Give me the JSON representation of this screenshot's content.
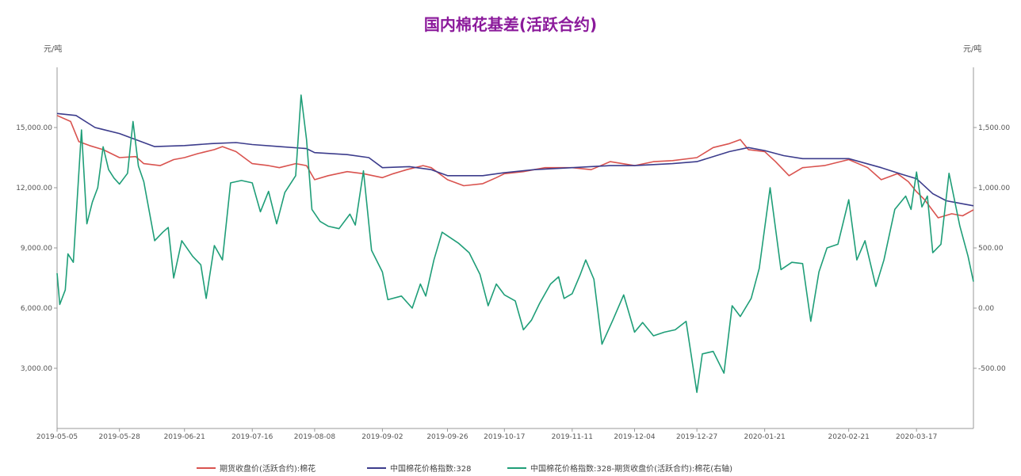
{
  "chart_data": {
    "type": "line",
    "title": "国内棉花基差(活跃合约)",
    "left_unit": "元/吨",
    "right_unit": "元/吨",
    "y_left": {
      "min": 0,
      "max": 18000,
      "ticks": [
        3000,
        6000,
        9000,
        12000,
        15000
      ],
      "tick_labels": [
        "3,000.00",
        "6,000.00",
        "9,000.00",
        "12,000.00",
        "15,000.00"
      ]
    },
    "y_right": {
      "min": -1000,
      "max": 2000,
      "ticks": [
        -500,
        0,
        500,
        1000,
        1500
      ],
      "tick_labels": [
        "-500.00",
        "0.00",
        "500.00",
        "1,000.00",
        "1,500.00"
      ]
    },
    "x_tick_labels": [
      "2019-05-05",
      "2019-05-28",
      "2019-06-21",
      "2019-07-16",
      "2019-08-08",
      "2019-09-02",
      "2019-09-26",
      "2019-10-17",
      "2019-11-11",
      "2019-12-04",
      "2019-12-27",
      "2020-01-21",
      "2020-02-21",
      "2020-03-17"
    ],
    "x_range": [
      "2019-05-05",
      "2020-04-07"
    ],
    "colors": {
      "futures": "#d9534f",
      "index": "#3c3c8c",
      "basis": "#1f9e78",
      "title": "#8b1a9b"
    },
    "legend": [
      "期货收盘价(活跃合约):棉花",
      "中国棉花价格指数:328",
      "中国棉花价格指数:328-期货收盘价(活跃合约):棉花(右轴)"
    ],
    "legend_position": "bottom",
    "series": [
      {
        "name": "期货收盘价(活跃合约):棉花",
        "axis": "left",
        "points": [
          [
            "2019-05-05",
            15600
          ],
          [
            "2019-05-10",
            15300
          ],
          [
            "2019-05-13",
            14300
          ],
          [
            "2019-05-17",
            14100
          ],
          [
            "2019-05-22",
            13900
          ],
          [
            "2019-05-28",
            13500
          ],
          [
            "2019-06-03",
            13550
          ],
          [
            "2019-06-06",
            13200
          ],
          [
            "2019-06-12",
            13100
          ],
          [
            "2019-06-17",
            13400
          ],
          [
            "2019-06-21",
            13500
          ],
          [
            "2019-06-26",
            13700
          ],
          [
            "2019-07-02",
            13900
          ],
          [
            "2019-07-05",
            14050
          ],
          [
            "2019-07-10",
            13800
          ],
          [
            "2019-07-16",
            13200
          ],
          [
            "2019-07-22",
            13100
          ],
          [
            "2019-07-26",
            13000
          ],
          [
            "2019-08-01",
            13200
          ],
          [
            "2019-08-05",
            13100
          ],
          [
            "2019-08-08",
            12400
          ],
          [
            "2019-08-13",
            12600
          ],
          [
            "2019-08-20",
            12800
          ],
          [
            "2019-08-26",
            12700
          ],
          [
            "2019-09-02",
            12500
          ],
          [
            "2019-09-06",
            12700
          ],
          [
            "2019-09-11",
            12900
          ],
          [
            "2019-09-17",
            13100
          ],
          [
            "2019-09-20",
            13000
          ],
          [
            "2019-09-26",
            12400
          ],
          [
            "2019-10-02",
            12100
          ],
          [
            "2019-10-09",
            12200
          ],
          [
            "2019-10-14",
            12500
          ],
          [
            "2019-10-17",
            12700
          ],
          [
            "2019-10-24",
            12800
          ],
          [
            "2019-11-01",
            13000
          ],
          [
            "2019-11-11",
            13000
          ],
          [
            "2019-11-18",
            12900
          ],
          [
            "2019-11-25",
            13300
          ],
          [
            "2019-12-04",
            13100
          ],
          [
            "2019-12-11",
            13300
          ],
          [
            "2019-12-18",
            13350
          ],
          [
            "2019-12-27",
            13500
          ],
          [
            "2020-01-02",
            14000
          ],
          [
            "2020-01-08",
            14200
          ],
          [
            "2020-01-12",
            14400
          ],
          [
            "2020-01-15",
            13900
          ],
          [
            "2020-01-21",
            13800
          ],
          [
            "2020-01-25",
            13300
          ],
          [
            "2020-01-30",
            12600
          ],
          [
            "2020-02-04",
            13000
          ],
          [
            "2020-02-12",
            13100
          ],
          [
            "2020-02-21",
            13400
          ],
          [
            "2020-02-28",
            13000
          ],
          [
            "2020-03-04",
            12400
          ],
          [
            "2020-03-10",
            12700
          ],
          [
            "2020-03-14",
            12300
          ],
          [
            "2020-03-17",
            11800
          ],
          [
            "2020-03-20",
            11400
          ],
          [
            "2020-03-25",
            10500
          ],
          [
            "2020-03-30",
            10700
          ],
          [
            "2020-04-03",
            10600
          ],
          [
            "2020-04-07",
            10900
          ]
        ]
      },
      {
        "name": "中国棉花价格指数:328",
        "axis": "left",
        "points": [
          [
            "2019-05-05",
            15700
          ],
          [
            "2019-05-12",
            15600
          ],
          [
            "2019-05-19",
            15000
          ],
          [
            "2019-05-28",
            14700
          ],
          [
            "2019-06-03",
            14400
          ],
          [
            "2019-06-10",
            14050
          ],
          [
            "2019-06-21",
            14100
          ],
          [
            "2019-07-01",
            14200
          ],
          [
            "2019-07-10",
            14250
          ],
          [
            "2019-07-16",
            14150
          ],
          [
            "2019-07-26",
            14050
          ],
          [
            "2019-08-05",
            13950
          ],
          [
            "2019-08-08",
            13750
          ],
          [
            "2019-08-20",
            13650
          ],
          [
            "2019-08-28",
            13500
          ],
          [
            "2019-09-02",
            13000
          ],
          [
            "2019-09-12",
            13050
          ],
          [
            "2019-09-20",
            12900
          ],
          [
            "2019-09-26",
            12600
          ],
          [
            "2019-10-09",
            12600
          ],
          [
            "2019-10-17",
            12750
          ],
          [
            "2019-10-28",
            12900
          ],
          [
            "2019-11-11",
            13000
          ],
          [
            "2019-11-25",
            13100
          ],
          [
            "2019-12-04",
            13100
          ],
          [
            "2019-12-18",
            13200
          ],
          [
            "2019-12-27",
            13300
          ],
          [
            "2020-01-08",
            13800
          ],
          [
            "2020-01-15",
            14000
          ],
          [
            "2020-01-21",
            13850
          ],
          [
            "2020-01-28",
            13600
          ],
          [
            "2020-02-04",
            13450
          ],
          [
            "2020-02-21",
            13450
          ],
          [
            "2020-03-04",
            13000
          ],
          [
            "2020-03-12",
            12650
          ],
          [
            "2020-03-17",
            12450
          ],
          [
            "2020-03-23",
            11700
          ],
          [
            "2020-03-28",
            11350
          ],
          [
            "2020-04-03",
            11200
          ],
          [
            "2020-04-07",
            11100
          ]
        ]
      },
      {
        "name": "中国棉花价格指数:328-期货收盘价(活跃合约):棉花(右轴)",
        "axis": "right",
        "points": [
          [
            "2019-05-05",
            290
          ],
          [
            "2019-05-06",
            30
          ],
          [
            "2019-05-08",
            150
          ],
          [
            "2019-05-09",
            450
          ],
          [
            "2019-05-11",
            380
          ],
          [
            "2019-05-14",
            1480
          ],
          [
            "2019-05-16",
            700
          ],
          [
            "2019-05-18",
            880
          ],
          [
            "2019-05-20",
            1000
          ],
          [
            "2019-05-22",
            1340
          ],
          [
            "2019-05-24",
            1150
          ],
          [
            "2019-05-26",
            1080
          ],
          [
            "2019-05-28",
            1030
          ],
          [
            "2019-05-31",
            1120
          ],
          [
            "2019-06-02",
            1550
          ],
          [
            "2019-06-04",
            1180
          ],
          [
            "2019-06-06",
            1050
          ],
          [
            "2019-06-10",
            560
          ],
          [
            "2019-06-13",
            630
          ],
          [
            "2019-06-15",
            670
          ],
          [
            "2019-06-17",
            250
          ],
          [
            "2019-06-20",
            560
          ],
          [
            "2019-06-24",
            430
          ],
          [
            "2019-06-27",
            360
          ],
          [
            "2019-06-29",
            80
          ],
          [
            "2019-07-02",
            520
          ],
          [
            "2019-07-05",
            400
          ],
          [
            "2019-07-08",
            1040
          ],
          [
            "2019-07-12",
            1060
          ],
          [
            "2019-07-16",
            1040
          ],
          [
            "2019-07-19",
            800
          ],
          [
            "2019-07-22",
            970
          ],
          [
            "2019-07-25",
            700
          ],
          [
            "2019-07-28",
            960
          ],
          [
            "2019-08-01",
            1100
          ],
          [
            "2019-08-03",
            1770
          ],
          [
            "2019-08-05",
            1400
          ],
          [
            "2019-08-07",
            820
          ],
          [
            "2019-08-10",
            720
          ],
          [
            "2019-08-13",
            680
          ],
          [
            "2019-08-17",
            660
          ],
          [
            "2019-08-21",
            780
          ],
          [
            "2019-08-23",
            690
          ],
          [
            "2019-08-26",
            1140
          ],
          [
            "2019-08-29",
            480
          ],
          [
            "2019-09-02",
            300
          ],
          [
            "2019-09-04",
            70
          ],
          [
            "2019-09-09",
            100
          ],
          [
            "2019-09-13",
            0
          ],
          [
            "2019-09-16",
            200
          ],
          [
            "2019-09-18",
            100
          ],
          [
            "2019-09-21",
            400
          ],
          [
            "2019-09-24",
            630
          ],
          [
            "2019-09-30",
            540
          ],
          [
            "2019-10-04",
            460
          ],
          [
            "2019-10-08",
            280
          ],
          [
            "2019-10-11",
            20
          ],
          [
            "2019-10-14",
            200
          ],
          [
            "2019-10-17",
            110
          ],
          [
            "2019-10-21",
            60
          ],
          [
            "2019-10-24",
            -180
          ],
          [
            "2019-10-27",
            -100
          ],
          [
            "2019-10-30",
            40
          ],
          [
            "2019-11-03",
            200
          ],
          [
            "2019-11-06",
            260
          ],
          [
            "2019-11-08",
            80
          ],
          [
            "2019-11-11",
            120
          ],
          [
            "2019-11-14",
            280
          ],
          [
            "2019-11-16",
            400
          ],
          [
            "2019-11-19",
            240
          ],
          [
            "2019-11-22",
            -300
          ],
          [
            "2019-11-26",
            -100
          ],
          [
            "2019-11-30",
            110
          ],
          [
            "2019-12-04",
            -200
          ],
          [
            "2019-12-07",
            -120
          ],
          [
            "2019-12-11",
            -230
          ],
          [
            "2019-12-15",
            -200
          ],
          [
            "2019-12-19",
            -180
          ],
          [
            "2019-12-23",
            -110
          ],
          [
            "2019-12-27",
            -700
          ],
          [
            "2019-12-29",
            -380
          ],
          [
            "2020-01-02",
            -360
          ],
          [
            "2020-01-06",
            -540
          ],
          [
            "2020-01-09",
            20
          ],
          [
            "2020-01-12",
            -70
          ],
          [
            "2020-01-16",
            80
          ],
          [
            "2020-01-19",
            330
          ],
          [
            "2020-01-23",
            1000
          ],
          [
            "2020-01-27",
            320
          ],
          [
            "2020-01-31",
            380
          ],
          [
            "2020-02-04",
            370
          ],
          [
            "2020-02-07",
            -110
          ],
          [
            "2020-02-10",
            300
          ],
          [
            "2020-02-13",
            500
          ],
          [
            "2020-02-17",
            530
          ],
          [
            "2020-02-21",
            900
          ],
          [
            "2020-02-24",
            400
          ],
          [
            "2020-02-27",
            560
          ],
          [
            "2020-03-02",
            180
          ],
          [
            "2020-03-05",
            400
          ],
          [
            "2020-03-09",
            820
          ],
          [
            "2020-03-13",
            930
          ],
          [
            "2020-03-15",
            820
          ],
          [
            "2020-03-17",
            1130
          ],
          [
            "2020-03-19",
            840
          ],
          [
            "2020-03-21",
            930
          ],
          [
            "2020-03-23",
            460
          ],
          [
            "2020-03-26",
            530
          ],
          [
            "2020-03-29",
            1120
          ],
          [
            "2020-04-02",
            680
          ],
          [
            "2020-04-05",
            430
          ],
          [
            "2020-04-07",
            220
          ]
        ]
      }
    ]
  }
}
